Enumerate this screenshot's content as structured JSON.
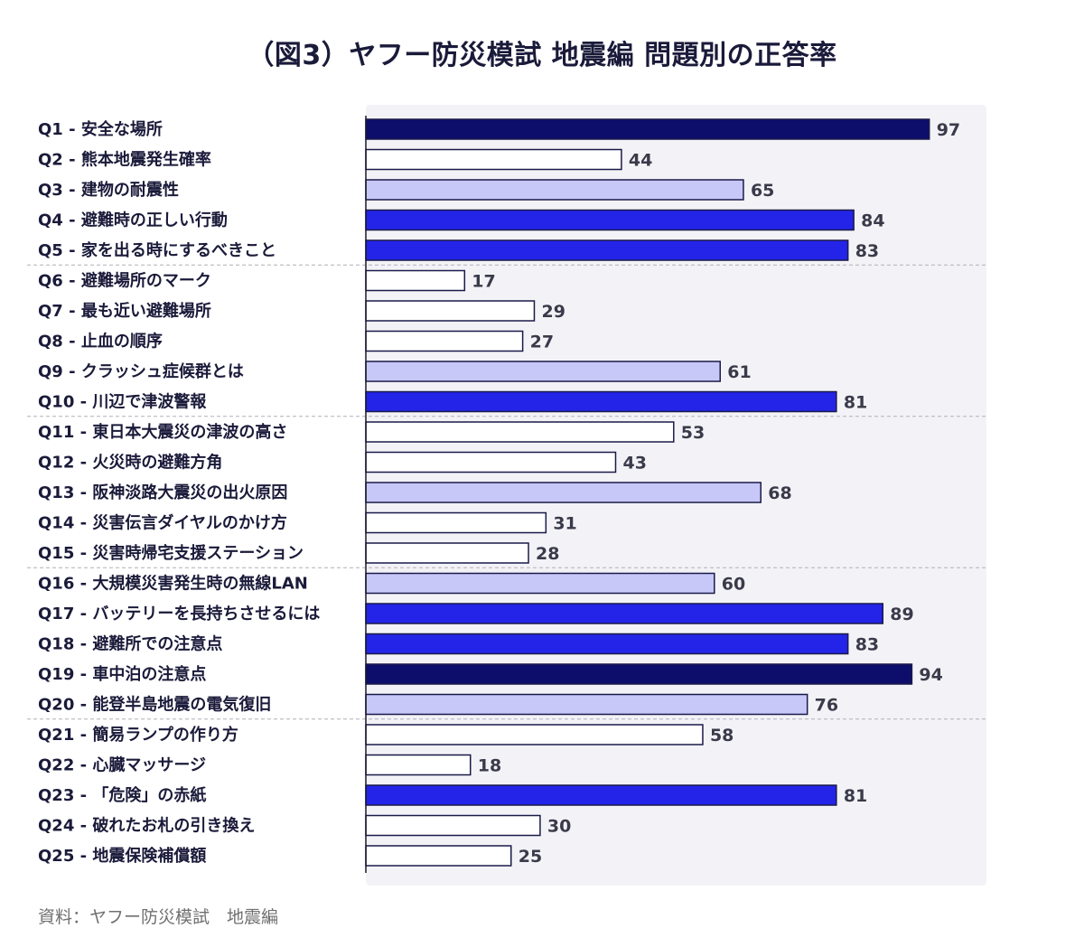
{
  "chart_data": {
    "type": "bar",
    "orientation": "horizontal",
    "title": "（図3）ヤフー防災模試 地震編 問題別の正答率",
    "xlabel": "",
    "ylabel": "",
    "xlim": [
      0,
      100
    ],
    "grid": false,
    "categories": [
      "Q1 - 安全な場所",
      "Q2 - 熊本地震発生確率",
      "Q3 - 建物の耐震性",
      "Q4 - 避難時の正しい行動",
      "Q5 - 家を出る時にするべきこと",
      "Q6 - 避難場所のマーク",
      "Q7 - 最も近い避難場所",
      "Q8 - 止血の順序",
      "Q9 - クラッシュ症候群とは",
      "Q10 - 川辺で津波警報",
      "Q11 - 東日本大震災の津波の高さ",
      "Q12 - 火災時の避難方角",
      "Q13 - 阪神淡路大震災の出火原因",
      "Q14 - 災害伝言ダイヤルのかけ方",
      "Q15 - 災害時帰宅支援ステーション",
      "Q16 - 大規模災害発生時の無線LAN",
      "Q17 - バッテリーを長持ちさせるには",
      "Q18 - 避難所での注意点",
      "Q19 - 車中泊の注意点",
      "Q20 - 能登半島地震の電気復旧",
      "Q21 - 簡易ランプの作り方",
      "Q22 - 心臓マッサージ",
      "Q23 - 「危険」の赤紙",
      "Q24 - 破れたお札の引き換え",
      "Q25 - 地震保険補償額"
    ],
    "values": [
      97,
      44,
      65,
      84,
      83,
      17,
      29,
      27,
      61,
      81,
      53,
      43,
      68,
      31,
      28,
      60,
      89,
      83,
      94,
      76,
      58,
      18,
      81,
      30,
      25
    ],
    "color_rule": [
      {
        "min": 90,
        "color": "#0d0d6b"
      },
      {
        "min": 80,
        "color": "#2424e8"
      },
      {
        "min": 60,
        "color": "#c8c8f8"
      },
      {
        "min": 0,
        "color": "#ffffff"
      }
    ],
    "group_size": 5
  },
  "colors": {
    "plot_background": "#f3f3f7",
    "bar_outline": "#1a1a4a",
    "separator": "#b0b0b8"
  },
  "source": "資料：ヤフー防災模試　地震編"
}
